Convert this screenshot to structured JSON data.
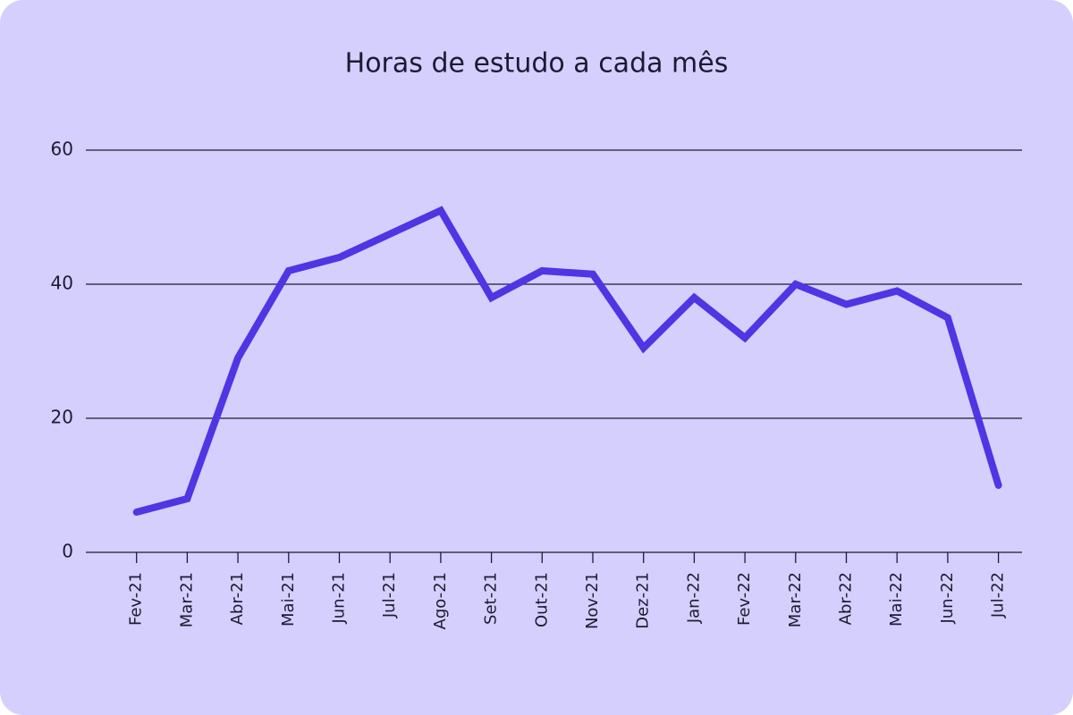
{
  "chart_data": {
    "type": "line",
    "title": "Horas de estudo a cada mês",
    "categories": [
      "Fev-21",
      "Mar-21",
      "Abr-21",
      "Mai-21",
      "Jun-21",
      "Jul-21",
      "Ago-21",
      "Set-21",
      "Out-21",
      "Nov-21",
      "Dez-21",
      "Jan-22",
      "Fev-22",
      "Mar-22",
      "Abr-22",
      "Mai-22",
      "Jun-22",
      "Jul-22"
    ],
    "series": [
      {
        "name": "Horas de estudo",
        "color": "#4f35e3",
        "values": [
          6,
          8,
          29,
          42,
          44,
          47.5,
          51,
          38,
          42,
          41.5,
          30.5,
          38,
          32,
          40,
          37,
          39,
          35,
          10
        ]
      }
    ],
    "ylim": [
      0,
      60
    ],
    "yticks": [
      0,
      20,
      40,
      60
    ],
    "grid": true
  }
}
